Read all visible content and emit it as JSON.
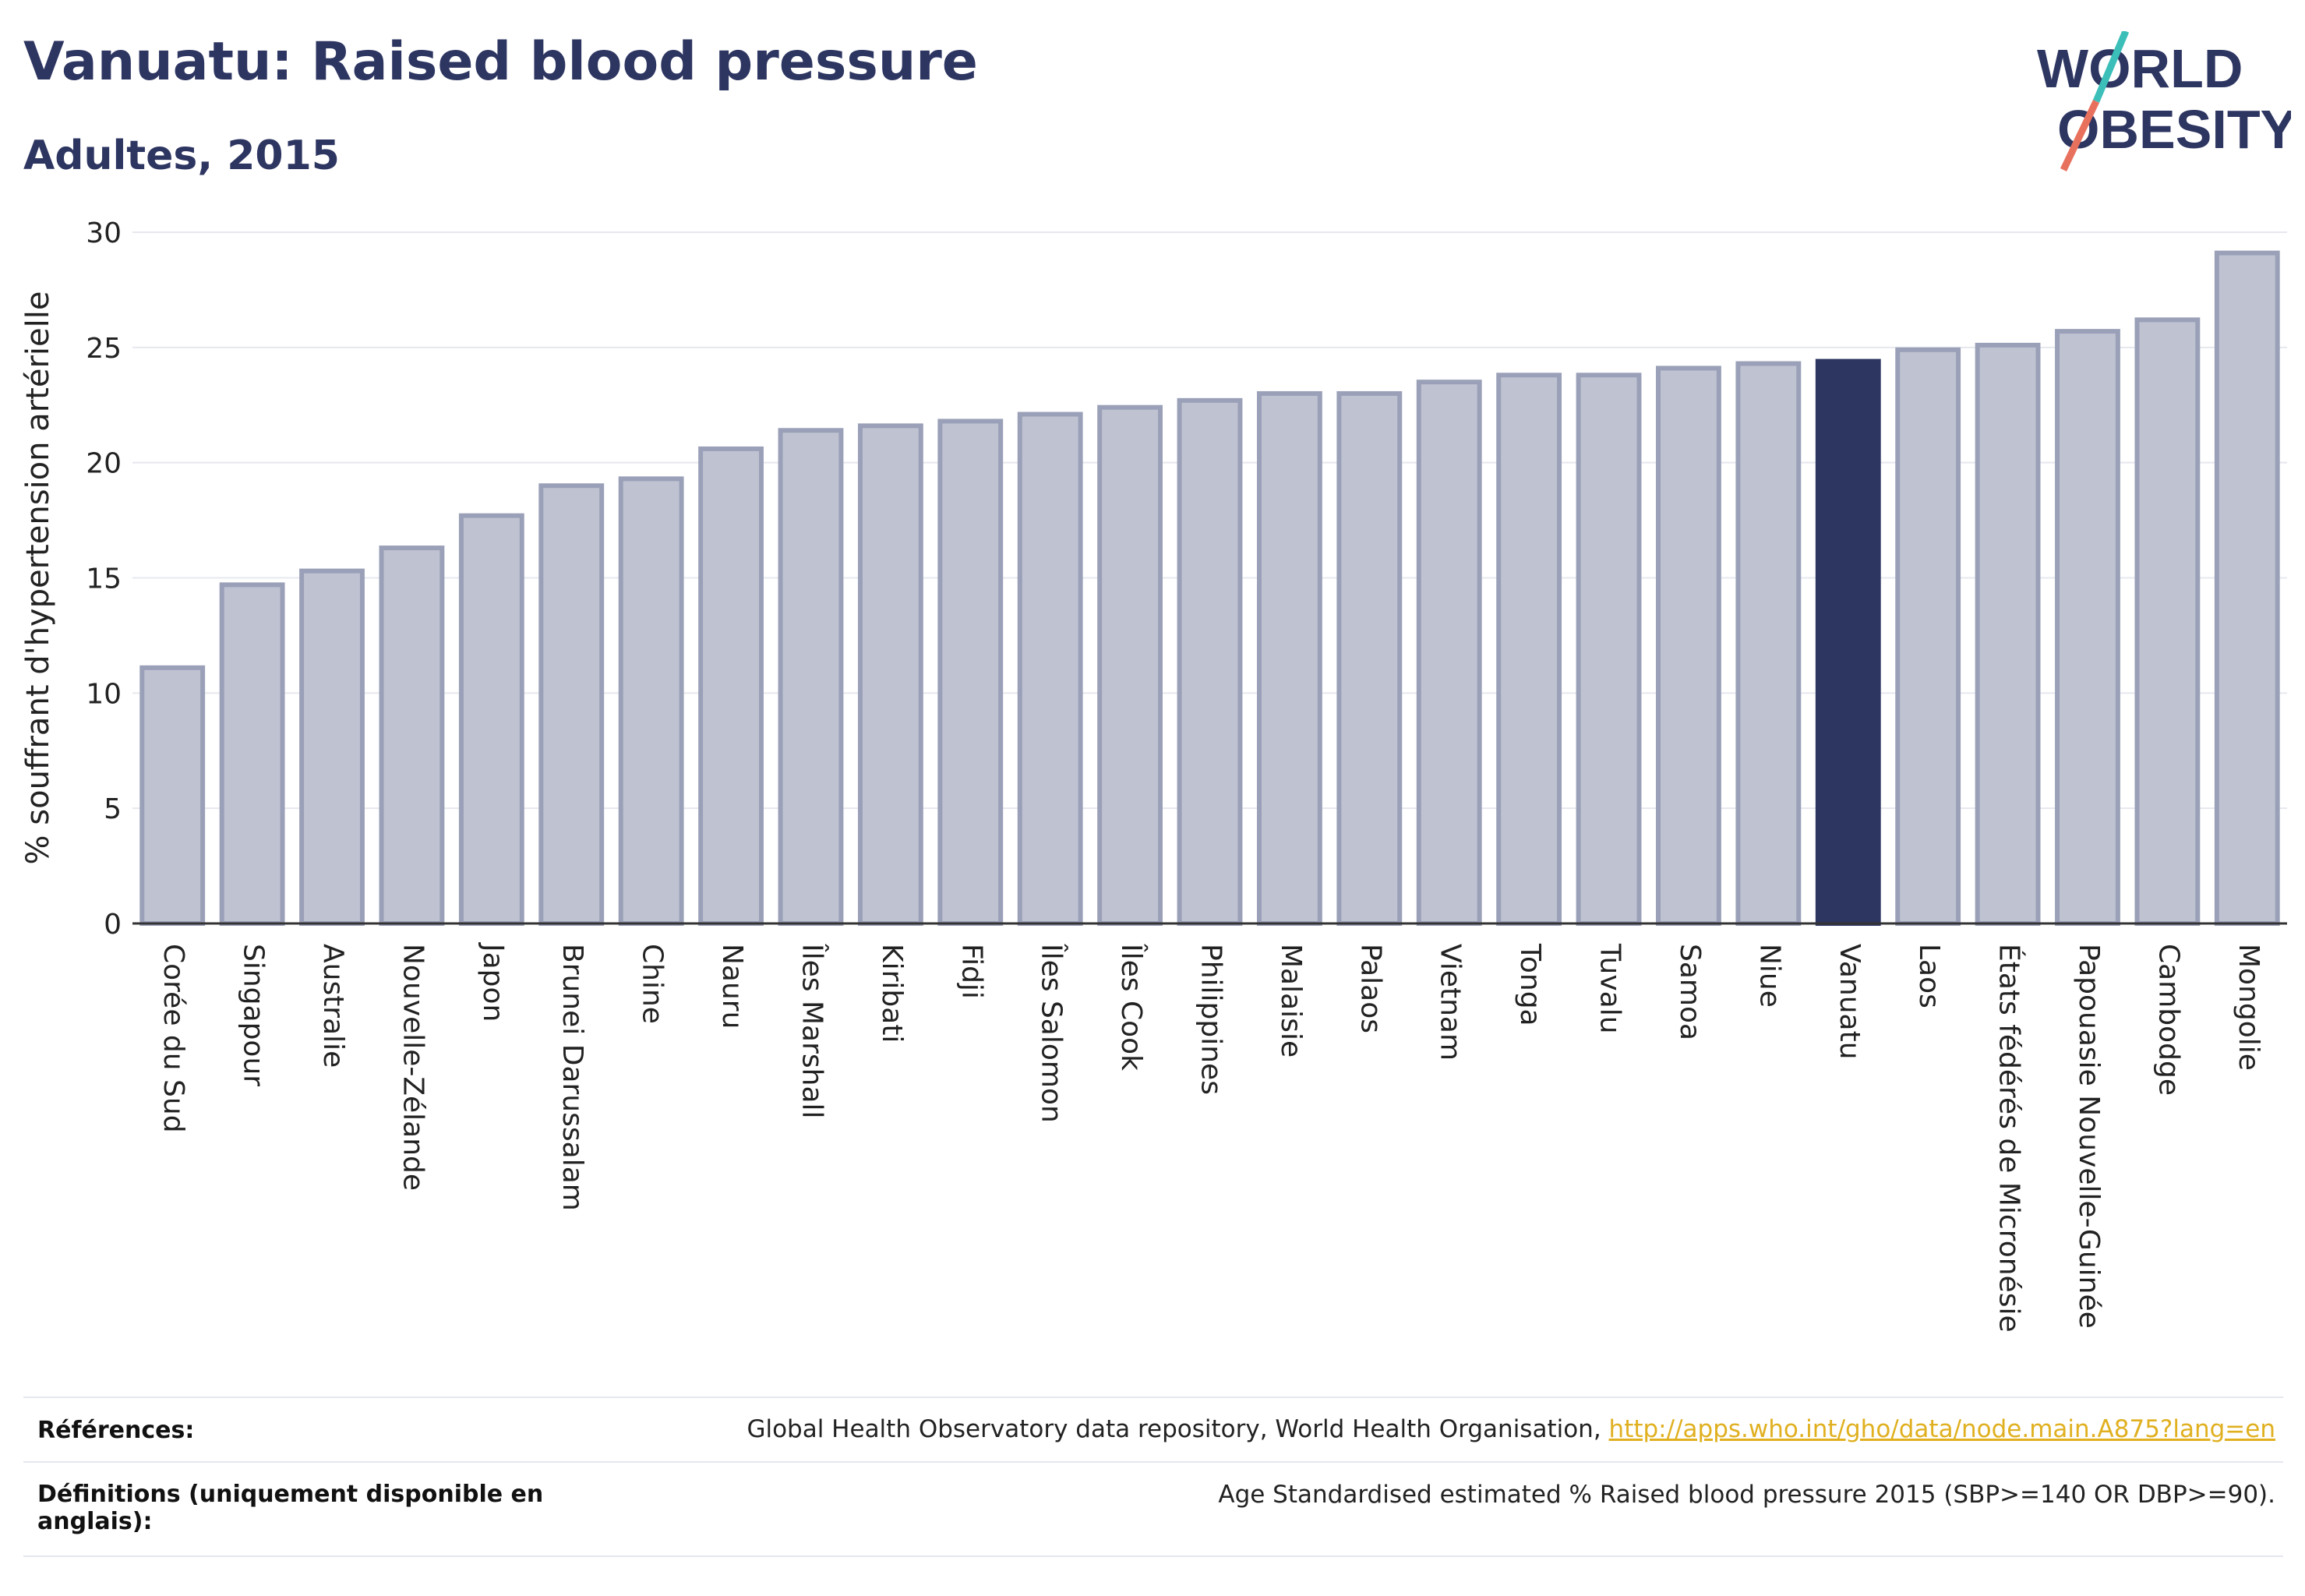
{
  "title": "Vanuatu: Raised blood pressure",
  "subtitle": "Adultes, 2015",
  "logo": {
    "line1": "WORLD",
    "line2": "OBESITY",
    "color_text": "#2d3561",
    "color_slash_top": "#3bbfb8",
    "color_slash_bottom": "#e8715e"
  },
  "references": {
    "label": "Références:",
    "text": "Global Health Observatory data repository, World Health Organisation, ",
    "link": "http://apps.who.int/gho/data/node.main.A875?lang=en"
  },
  "definitions": {
    "label_line1": "Définitions (uniquement disponible en",
    "label_line2": "anglais):",
    "text": "Age Standardised estimated % Raised blood pressure 2015 (SBP>=140 OR DBP>=90)."
  },
  "chart_data": {
    "type": "bar",
    "title": "Vanuatu: Raised blood pressure",
    "subtitle": "Adultes, 2015",
    "xlabel": "",
    "ylabel": "% souffrant d'hypertension artérielle",
    "ylim": [
      0,
      30
    ],
    "yticks": [
      0,
      5,
      10,
      15,
      20,
      25,
      30
    ],
    "grid": true,
    "highlight": "Vanuatu",
    "colors": {
      "bar": "#bfc3d1",
      "bar_edge": "#9aa0b8",
      "highlight": "#2d3561"
    },
    "categories": [
      "Corée du Sud",
      "Singapour",
      "Australie",
      "Nouvelle-Zélande",
      "Japon",
      "Brunei Darussalam",
      "Chine",
      "Nauru",
      "Îles Marshall",
      "Kiribati",
      "Fidji",
      "Îles Salomon",
      "Îles Cook",
      "Philippines",
      "Malaisie",
      "Palaos",
      "Vietnam",
      "Tonga",
      "Tuvalu",
      "Samoa",
      "Niue",
      "Vanuatu",
      "Laos",
      "États fédérés de Micronésie",
      "Papouasie Nouvelle-Guinée",
      "Cambodge",
      "Mongolie"
    ],
    "values": [
      11.1,
      14.7,
      15.3,
      16.3,
      17.7,
      19.0,
      19.3,
      20.6,
      21.4,
      21.6,
      21.8,
      22.1,
      22.4,
      22.7,
      23.0,
      23.0,
      23.5,
      23.8,
      23.8,
      24.1,
      24.3,
      24.4,
      24.9,
      25.1,
      25.7,
      26.2,
      29.1
    ]
  }
}
